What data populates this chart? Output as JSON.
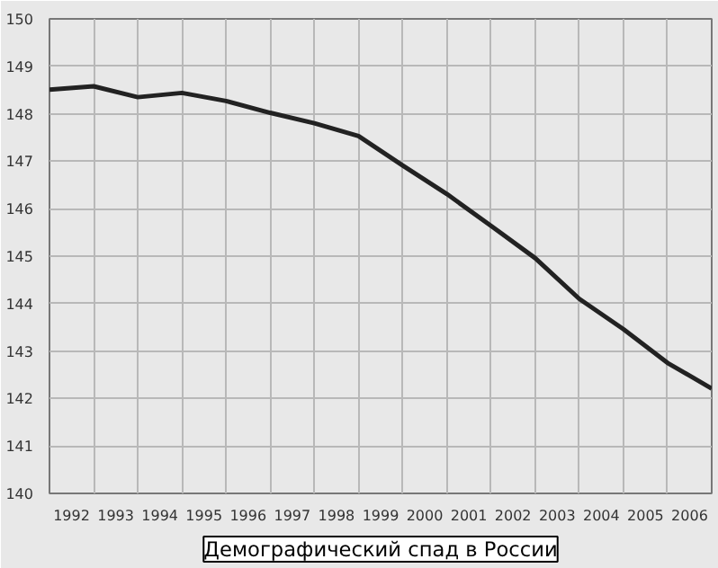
{
  "chart_data": {
    "type": "line",
    "x": [
      1992,
      1993,
      1994,
      1995,
      1996,
      1997,
      1998,
      1999,
      2000,
      2001,
      2002,
      2003,
      2004,
      2005,
      2006,
      2007
    ],
    "series": [
      {
        "color": "#222222",
        "values": [
          148.51,
          148.58,
          148.35,
          148.44,
          148.27,
          148.02,
          147.8,
          147.53,
          146.91,
          146.31,
          145.64,
          144.96,
          144.1,
          143.46,
          142.75,
          142.21
        ]
      }
    ],
    "xlim": [
      1992,
      2007
    ],
    "xticks": [
      {
        "value": 1993,
        "label": null
      },
      {
        "value": 1994,
        "label": null
      },
      {
        "value": 1995,
        "label": null
      },
      {
        "value": 1996,
        "label": null
      },
      {
        "value": 1997,
        "label": null
      },
      {
        "value": 1998,
        "label": null
      },
      {
        "value": 1999,
        "label": null
      },
      {
        "value": 2000,
        "label": null
      },
      {
        "value": 2001,
        "label": null
      },
      {
        "value": 2002,
        "label": null
      },
      {
        "value": 2003,
        "label": null
      },
      {
        "value": 2004,
        "label": null
      },
      {
        "value": 2005,
        "label": null
      },
      {
        "value": 2006,
        "label": null
      },
      {
        "value": 1992.5,
        "label": "1992"
      },
      {
        "value": 1993.5,
        "label": "1993"
      },
      {
        "value": 1994.5,
        "label": "1994"
      },
      {
        "value": 1995.5,
        "label": "1995"
      },
      {
        "value": 1996.5,
        "label": "1996"
      },
      {
        "value": 1997.5,
        "label": "1997"
      },
      {
        "value": 1998.5,
        "label": "1998"
      },
      {
        "value": 1999.5,
        "label": "1999"
      },
      {
        "value": 2000.5,
        "label": "2000"
      },
      {
        "value": 2001.5,
        "label": "2001"
      },
      {
        "value": 2002.5,
        "label": "2002"
      },
      {
        "value": 2003.5,
        "label": "2003"
      },
      {
        "value": 2004.5,
        "label": "2004"
      },
      {
        "value": 2005.5,
        "label": "2005"
      },
      {
        "value": 2006.5,
        "label": "2006"
      }
    ],
    "ylim": [
      140,
      150
    ],
    "yticks": [
      140,
      141,
      142,
      143,
      144,
      145,
      146,
      147,
      148,
      149,
      150
    ],
    "grid": true,
    "line_style": "solid",
    "annotations": [
      "Демографический спад в России"
    ]
  }
}
